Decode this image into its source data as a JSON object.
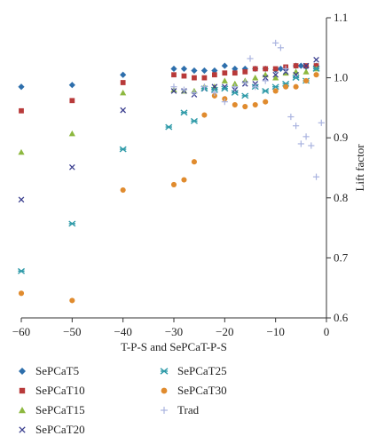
{
  "chart_data": {
    "type": "scatter",
    "xlabel": "T-P-S and SePCaT-P-S",
    "ylabel": "Lift factor",
    "xlim": [
      -60,
      0
    ],
    "ylim": [
      0.6,
      1.1
    ],
    "xticks": [
      "−60",
      "−50",
      "−40",
      "−30",
      "−20",
      "−10",
      "0"
    ],
    "yticks": [
      "0.6",
      "0.7",
      "0.8",
      "0.9",
      "1.0",
      "1.1"
    ],
    "grid": false,
    "legend_position": "bottom",
    "series": [
      {
        "name": "SePCaT5",
        "marker": "diamond",
        "color": "#2e6fac",
        "points": [
          [
            -60,
            0.985
          ],
          [
            -50,
            0.988
          ],
          [
            -40,
            1.005
          ],
          [
            -30,
            1.015
          ],
          [
            -28,
            1.015
          ],
          [
            -26,
            1.012
          ],
          [
            -24,
            1.012
          ],
          [
            -22,
            1.012
          ],
          [
            -20,
            1.02
          ],
          [
            -18,
            1.015
          ],
          [
            -16,
            1.015
          ],
          [
            -14,
            1.015
          ],
          [
            -12,
            1.015
          ],
          [
            -10,
            1.013
          ],
          [
            -9,
            1.015
          ],
          [
            -8,
            1.015
          ],
          [
            -6,
            1.02
          ],
          [
            -5,
            1.02
          ],
          [
            -4,
            1.018
          ],
          [
            -2,
            1.02
          ]
        ]
      },
      {
        "name": "SePCaT10",
        "marker": "square",
        "color": "#b83a3a",
        "points": [
          [
            -60,
            0.945
          ],
          [
            -50,
            0.962
          ],
          [
            -40,
            0.992
          ],
          [
            -30,
            1.005
          ],
          [
            -28,
            1.003
          ],
          [
            -26,
            1.0
          ],
          [
            -24,
            1.0
          ],
          [
            -22,
            1.005
          ],
          [
            -20,
            1.008
          ],
          [
            -18,
            1.008
          ],
          [
            -16,
            1.01
          ],
          [
            -14,
            1.015
          ],
          [
            -12,
            1.015
          ],
          [
            -10,
            1.015
          ],
          [
            -8,
            1.018
          ],
          [
            -6,
            1.02
          ],
          [
            -4,
            1.02
          ],
          [
            -2,
            1.02
          ]
        ]
      },
      {
        "name": "SePCaT15",
        "marker": "triangle",
        "color": "#8db83f",
        "points": [
          [
            -60,
            0.876
          ],
          [
            -50,
            0.907
          ],
          [
            -40,
            0.975
          ],
          [
            -30,
            0.98
          ],
          [
            -28,
            0.978
          ],
          [
            -26,
            0.978
          ],
          [
            -24,
            0.985
          ],
          [
            -22,
            0.985
          ],
          [
            -20,
            0.995
          ],
          [
            -18,
            0.99
          ],
          [
            -16,
            0.995
          ],
          [
            -14,
            1.0
          ],
          [
            -12,
            1.005
          ],
          [
            -10,
            1.0
          ],
          [
            -8,
            1.008
          ],
          [
            -6,
            1.01
          ],
          [
            -4,
            1.01
          ],
          [
            -2,
            1.015
          ]
        ]
      },
      {
        "name": "SePCaT20",
        "marker": "x",
        "color": "#3b3f8f",
        "points": [
          [
            -60,
            0.797
          ],
          [
            -50,
            0.851
          ],
          [
            -40,
            0.946
          ],
          [
            -30,
            0.978
          ],
          [
            -28,
            0.978
          ],
          [
            -26,
            0.972
          ],
          [
            -24,
            0.982
          ],
          [
            -22,
            0.985
          ],
          [
            -20,
            0.985
          ],
          [
            -18,
            0.98
          ],
          [
            -16,
            0.99
          ],
          [
            -14,
            0.99
          ],
          [
            -12,
            1.0
          ],
          [
            -10,
            1.005
          ],
          [
            -8,
            1.01
          ],
          [
            -6,
            1.005
          ],
          [
            -4,
            1.02
          ],
          [
            -2,
            1.03
          ]
        ]
      },
      {
        "name": "SePCaT25",
        "marker": "asterisk",
        "color": "#2e9aa8",
        "points": [
          [
            -60,
            0.678
          ],
          [
            -50,
            0.757
          ],
          [
            -40,
            0.881
          ],
          [
            -31,
            0.918
          ],
          [
            -28,
            0.942
          ],
          [
            -26,
            0.928
          ],
          [
            -24,
            0.982
          ],
          [
            -22,
            0.98
          ],
          [
            -20,
            0.982
          ],
          [
            -18,
            0.975
          ],
          [
            -16,
            0.97
          ],
          [
            -14,
            0.985
          ],
          [
            -12,
            0.978
          ],
          [
            -10,
            0.985
          ],
          [
            -8,
            0.99
          ],
          [
            -6,
            1.0
          ],
          [
            -4,
            0.995
          ],
          [
            -2,
            1.015
          ]
        ]
      },
      {
        "name": "SePCaT30",
        "marker": "circle",
        "color": "#e08b2e",
        "points": [
          [
            -60,
            0.641
          ],
          [
            -50,
            0.629
          ],
          [
            -40,
            0.813
          ],
          [
            -30,
            0.822
          ],
          [
            -28,
            0.83
          ],
          [
            -26,
            0.86
          ],
          [
            -24,
            0.938
          ],
          [
            -22,
            0.97
          ],
          [
            -20,
            0.965
          ],
          [
            -18,
            0.955
          ],
          [
            -16,
            0.952
          ],
          [
            -14,
            0.955
          ],
          [
            -12,
            0.96
          ],
          [
            -10,
            0.978
          ],
          [
            -8,
            0.985
          ],
          [
            -6,
            0.985
          ],
          [
            -4,
            0.995
          ],
          [
            -2,
            1.005
          ]
        ]
      },
      {
        "name": "Trad",
        "marker": "plus",
        "color": "#aab4e0",
        "points": [
          [
            -30,
            0.985
          ],
          [
            -28,
            0.98
          ],
          [
            -26,
            0.975
          ],
          [
            -24,
            0.985
          ],
          [
            -22,
            0.975
          ],
          [
            -20,
            0.96
          ],
          [
            -18,
            0.985
          ],
          [
            -16,
            0.992
          ],
          [
            -15,
            1.032
          ],
          [
            -14,
            0.985
          ],
          [
            -12,
            0.995
          ],
          [
            -10,
            1.058
          ],
          [
            -9,
            1.05
          ],
          [
            -8,
            1.015
          ],
          [
            -7,
            0.935
          ],
          [
            -6,
            0.92
          ],
          [
            -5,
            0.89
          ],
          [
            -4,
            0.902
          ],
          [
            -3,
            0.887
          ],
          [
            -2,
            0.835
          ],
          [
            -1,
            0.925
          ]
        ]
      }
    ]
  }
}
